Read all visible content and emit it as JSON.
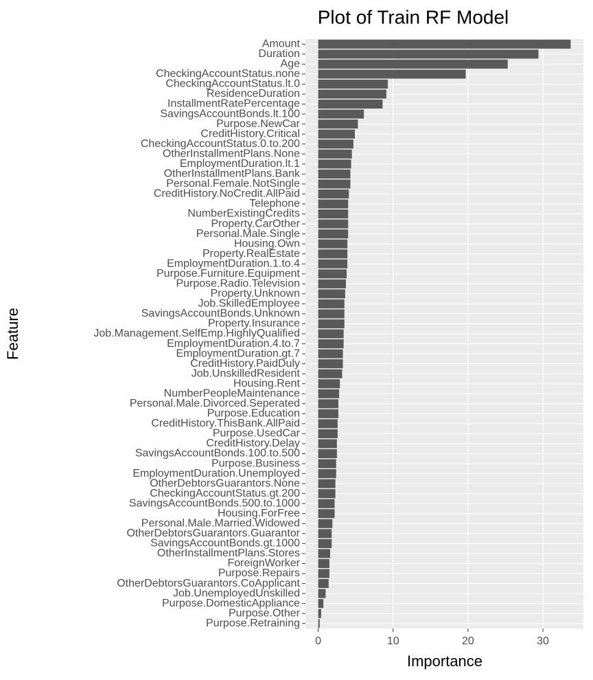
{
  "chart_data": {
    "type": "bar",
    "orientation": "horizontal",
    "title": "Plot of Train RF Model",
    "x_label": "Importance",
    "y_label": "Feature",
    "categories": [
      "Amount",
      "Duration",
      "Age",
      "CheckingAccountStatus.none",
      "CheckingAccountStatus.lt.0",
      "ResidenceDuration",
      "InstallmentRatePercentage",
      "SavingsAccountBonds.lt.100",
      "Purpose.NewCar",
      "CreditHistory.Critical",
      "CheckingAccountStatus.0.to.200",
      "OtherInstallmentPlans.None",
      "EmploymentDuration.lt.1",
      "OtherInstallmentPlans.Bank",
      "Personal.Female.NotSingle",
      "CreditHistory.NoCredit.AllPaid",
      "Telephone",
      "NumberExistingCredits",
      "Property.CarOther",
      "Personal.Male.Single",
      "Housing.Own",
      "Property.RealEstate",
      "EmploymentDuration.1.to.4",
      "Purpose.Furniture.Equipment",
      "Purpose.Radio.Television",
      "Property.Unknown",
      "Job.SkilledEmployee",
      "SavingsAccountBonds.Unknown",
      "Property.Insurance",
      "Job.Management.SelfEmp.HighlyQualified",
      "EmploymentDuration.4.to.7",
      "EmploymentDuration.gt.7",
      "CreditHistory.PaidDuly",
      "Job.UnskilledResident",
      "Housing.Rent",
      "NumberPeopleMaintenance",
      "Personal.Male.Divorced.Seperated",
      "Purpose.Education",
      "CreditHistory.ThisBank.AllPaid",
      "Purpose.UsedCar",
      "CreditHistory.Delay",
      "SavingsAccountBonds.100.to.500",
      "Purpose.Business",
      "EmploymentDuration.Unemployed",
      "OtherDebtorsGuarantors.None",
      "CheckingAccountStatus.gt.200",
      "SavingsAccountBonds.500.to.1000",
      "Housing.ForFree",
      "Personal.Male.Married.Widowed",
      "OtherDebtorsGuarantors.Guarantor",
      "SavingsAccountBonds.gt.1000",
      "OtherInstallmentPlans.Stores",
      "ForeignWorker",
      "Purpose.Repairs",
      "OtherDebtorsGuarantors.CoApplicant",
      "Job.UnemployedUnskilled",
      "Purpose.DomesticAppliance",
      "Purpose.Other",
      "Purpose.Retraining"
    ],
    "values": [
      33.7,
      29.4,
      25.3,
      19.7,
      9.3,
      9.1,
      8.6,
      6.1,
      5.3,
      4.9,
      4.7,
      4.5,
      4.4,
      4.3,
      4.3,
      4.1,
      4.0,
      4.0,
      4.0,
      4.0,
      3.9,
      3.9,
      3.9,
      3.8,
      3.7,
      3.6,
      3.5,
      3.5,
      3.5,
      3.4,
      3.4,
      3.3,
      3.3,
      3.2,
      2.9,
      2.8,
      2.7,
      2.7,
      2.6,
      2.6,
      2.5,
      2.5,
      2.4,
      2.4,
      2.3,
      2.3,
      2.2,
      2.2,
      1.9,
      1.8,
      1.8,
      1.6,
      1.5,
      1.5,
      1.4,
      1.0,
      0.7,
      0.4,
      0.2
    ],
    "color": "#595959",
    "xlim": [
      -1.7,
      35.4
    ],
    "xticks": [
      0,
      10,
      20,
      30
    ],
    "grid": true
  }
}
